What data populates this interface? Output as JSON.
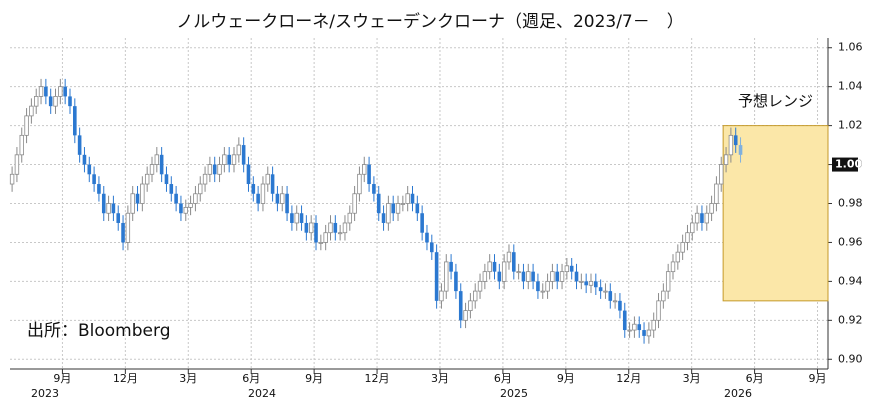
{
  "chart_data": {
    "type": "candlestick",
    "title": "ノルウェークローネ/スウェーデンクローナ（週足、2023/7－　）",
    "source": "出所：Bloomberg",
    "up_color": "#ffffff",
    "up_stroke": "#8a8a8a",
    "down_color": "#2b78d0",
    "latest_color": "#7fb0de",
    "grid": true,
    "xlim": [
      5.5,
      44.5
    ],
    "xticks": [
      {
        "value": 8,
        "label": "9月"
      },
      {
        "value": 11,
        "label": "12月"
      },
      {
        "value": 14,
        "label": "3月"
      },
      {
        "value": 17,
        "label": "6月"
      },
      {
        "value": 20,
        "label": "9月"
      },
      {
        "value": 23,
        "label": "12月"
      },
      {
        "value": 26,
        "label": "3月"
      },
      {
        "value": 29,
        "label": "6月"
      },
      {
        "value": 32,
        "label": "9月"
      },
      {
        "value": 35,
        "label": "12月"
      },
      {
        "value": 38,
        "label": "3月"
      },
      {
        "value": 41,
        "label": "6月"
      },
      {
        "value": 44,
        "label": "9月"
      }
    ],
    "year_labels": [
      "2023",
      "2024",
      "2025",
      "2026"
    ],
    "ylim": [
      0.895,
      1.065
    ],
    "yticks": [
      1.06,
      1.04,
      1.02,
      {
        "value": 1.0,
        "label": "1.00"
      },
      0.98,
      0.96,
      0.94,
      0.92,
      {
        "value": 0.9,
        "label": "0.90"
      }
    ],
    "last_price": {
      "value": 1.0,
      "label": "1.00"
    },
    "forecast_range": {
      "label": "予想レンジ",
      "low": 0.93,
      "high": 1.02,
      "x_start": 39.5
    },
    "x": [
      5.6,
      5.83,
      6.06,
      6.29,
      6.52,
      6.75,
      6.98,
      7.21,
      7.44,
      7.67,
      7.9,
      8.13,
      8.36,
      8.59,
      8.82,
      9.05,
      9.28,
      9.51,
      9.74,
      9.97,
      10.2,
      10.43,
      10.66,
      10.89,
      11.12,
      11.35,
      11.58,
      11.81,
      12.04,
      12.27,
      12.5,
      12.73,
      12.96,
      13.19,
      13.42,
      13.65,
      13.88,
      14.11,
      14.34,
      14.57,
      14.8,
      15.03,
      15.26,
      15.49,
      15.72,
      15.95,
      16.18,
      16.41,
      16.64,
      16.87,
      17.1,
      17.33,
      17.56,
      17.79,
      18.02,
      18.25,
      18.48,
      18.71,
      18.94,
      19.17,
      19.4,
      19.63,
      19.86,
      20.09,
      20.32,
      20.55,
      20.78,
      21.01,
      21.24,
      21.47,
      21.7,
      21.93,
      22.16,
      22.39,
      22.62,
      22.85,
      23.08,
      23.31,
      23.54,
      23.77,
      24,
      24.23,
      24.46,
      24.69,
      24.92,
      25.15,
      25.38,
      25.61,
      25.84,
      26.07,
      26.3,
      26.53,
      26.76,
      26.99,
      27.22,
      27.45,
      27.68,
      27.91,
      28.14,
      28.37,
      28.6,
      28.83,
      29.06,
      29.29,
      29.52,
      29.75,
      29.98,
      30.21,
      30.44,
      30.67,
      30.9,
      31.13,
      31.36,
      31.59,
      31.82,
      32.05,
      32.28,
      32.51,
      32.74,
      32.97,
      33.2,
      33.43,
      33.66,
      33.89,
      34.12,
      34.35,
      34.58,
      34.81,
      35.04,
      35.27,
      35.5,
      35.73,
      35.96,
      36.19,
      36.42,
      36.65,
      36.88,
      37.11,
      37.34,
      37.57,
      37.8,
      38.03,
      38.26,
      38.49,
      38.72,
      38.95,
      39.18,
      39.41,
      39.64,
      39.87,
      40.1,
      40.33
    ],
    "open": [
      0.99,
      0.995,
      1.005,
      1.015,
      1.025,
      1.03,
      1.035,
      1.04,
      1.035,
      1.03,
      1.035,
      1.04,
      1.035,
      1.03,
      1.015,
      1.005,
      1.0,
      0.995,
      0.99,
      0.985,
      0.975,
      0.98,
      0.975,
      0.97,
      0.96,
      0.975,
      0.985,
      0.98,
      0.99,
      0.995,
      1.0,
      1.005,
      0.995,
      0.99,
      0.985,
      0.98,
      0.975,
      0.978,
      0.98,
      0.985,
      0.99,
      0.995,
      1.0,
      0.995,
      1.0,
      1.005,
      1.0,
      1.005,
      1.01,
      1.0,
      0.99,
      0.985,
      0.98,
      0.99,
      0.995,
      0.985,
      0.98,
      0.985,
      0.975,
      0.97,
      0.975,
      0.97,
      0.965,
      0.97,
      0.96,
      0.96,
      0.965,
      0.97,
      0.965,
      0.965,
      0.97,
      0.975,
      0.985,
      0.995,
      1.0,
      0.99,
      0.985,
      0.975,
      0.97,
      0.98,
      0.975,
      0.98,
      0.98,
      0.985,
      0.98,
      0.975,
      0.965,
      0.96,
      0.955,
      0.93,
      0.935,
      0.95,
      0.945,
      0.935,
      0.92,
      0.925,
      0.93,
      0.935,
      0.94,
      0.945,
      0.95,
      0.945,
      0.94,
      0.95,
      0.955,
      0.945,
      0.945,
      0.94,
      0.945,
      0.94,
      0.935,
      0.935,
      0.94,
      0.945,
      0.94,
      0.945,
      0.948,
      0.945,
      0.94,
      0.94,
      0.938,
      0.94,
      0.937,
      0.935,
      0.935,
      0.93,
      0.93,
      0.925,
      0.915,
      0.915,
      0.918,
      0.915,
      0.912,
      0.915,
      0.92,
      0.93,
      0.935,
      0.945,
      0.95,
      0.955,
      0.96,
      0.965,
      0.97,
      0.975,
      0.97,
      0.975,
      0.98,
      0.99,
      1.0,
      1.005,
      1.015,
      1.01
    ],
    "high": [
      0.999,
      1.009,
      1.019,
      1.029,
      1.034,
      1.039,
      1.044,
      1.044,
      1.039,
      1.039,
      1.044,
      1.044,
      1.039,
      1.034,
      1.019,
      1.009,
      1.004,
      0.999,
      0.994,
      0.989,
      0.984,
      0.984,
      0.979,
      0.974,
      0.979,
      0.989,
      0.989,
      0.994,
      0.999,
      1.004,
      1.009,
      1.009,
      0.999,
      0.994,
      0.989,
      0.984,
      0.982,
      0.984,
      0.989,
      0.994,
      0.999,
      1.004,
      1.004,
      1.004,
      1.009,
      1.009,
      1.009,
      1.014,
      1.014,
      1.004,
      0.994,
      0.989,
      0.994,
      0.999,
      0.999,
      0.989,
      0.989,
      0.989,
      0.979,
      0.979,
      0.979,
      0.974,
      0.974,
      0.974,
      0.964,
      0.969,
      0.974,
      0.974,
      0.969,
      0.974,
      0.979,
      0.989,
      0.999,
      1.004,
      1.004,
      0.994,
      0.989,
      0.979,
      0.984,
      0.984,
      0.984,
      0.984,
      0.989,
      0.989,
      0.984,
      0.979,
      0.969,
      0.964,
      0.959,
      0.939,
      0.954,
      0.954,
      0.949,
      0.939,
      0.929,
      0.934,
      0.939,
      0.944,
      0.949,
      0.954,
      0.954,
      0.949,
      0.954,
      0.959,
      0.959,
      0.949,
      0.949,
      0.949,
      0.949,
      0.944,
      0.939,
      0.944,
      0.949,
      0.949,
      0.949,
      0.952,
      0.952,
      0.949,
      0.944,
      0.944,
      0.944,
      0.944,
      0.941,
      0.939,
      0.939,
      0.934,
      0.934,
      0.929,
      0.919,
      0.922,
      0.922,
      0.919,
      0.919,
      0.924,
      0.934,
      0.939,
      0.949,
      0.954,
      0.959,
      0.964,
      0.969,
      0.974,
      0.979,
      0.979,
      0.979,
      0.984,
      0.994,
      1.004,
      1.009,
      1.019,
      1.019,
      1.014
    ],
    "low": [
      0.986,
      0.991,
      1.001,
      1.011,
      1.021,
      1.026,
      1.031,
      1.031,
      1.026,
      1.026,
      1.031,
      1.031,
      1.026,
      1.011,
      1.001,
      0.996,
      0.991,
      0.986,
      0.981,
      0.971,
      0.971,
      0.971,
      0.966,
      0.956,
      0.956,
      0.971,
      0.976,
      0.976,
      0.986,
      0.991,
      0.996,
      0.991,
      0.986,
      0.981,
      0.976,
      0.971,
      0.971,
      0.974,
      0.976,
      0.981,
      0.986,
      0.991,
      0.991,
      0.991,
      0.996,
      0.996,
      0.996,
      1.001,
      0.996,
      0.986,
      0.981,
      0.976,
      0.976,
      0.986,
      0.981,
      0.976,
      0.976,
      0.971,
      0.966,
      0.966,
      0.966,
      0.961,
      0.961,
      0.956,
      0.956,
      0.956,
      0.961,
      0.961,
      0.961,
      0.961,
      0.966,
      0.971,
      0.981,
      0.991,
      0.986,
      0.981,
      0.971,
      0.966,
      0.966,
      0.971,
      0.971,
      0.976,
      0.976,
      0.976,
      0.971,
      0.961,
      0.956,
      0.951,
      0.926,
      0.926,
      0.931,
      0.941,
      0.931,
      0.916,
      0.916,
      0.921,
      0.926,
      0.931,
      0.936,
      0.941,
      0.941,
      0.936,
      0.936,
      0.946,
      0.941,
      0.941,
      0.936,
      0.936,
      0.936,
      0.931,
      0.931,
      0.931,
      0.936,
      0.936,
      0.936,
      0.941,
      0.941,
      0.936,
      0.936,
      0.934,
      0.934,
      0.933,
      0.931,
      0.931,
      0.926,
      0.926,
      0.921,
      0.911,
      0.911,
      0.911,
      0.911,
      0.908,
      0.908,
      0.911,
      0.916,
      0.926,
      0.931,
      0.941,
      0.946,
      0.951,
      0.956,
      0.961,
      0.966,
      0.966,
      0.966,
      0.971,
      0.976,
      0.986,
      0.996,
      1.001,
      1.006,
      1.001
    ],
    "close": [
      0.995,
      1.005,
      1.015,
      1.025,
      1.03,
      1.035,
      1.04,
      1.035,
      1.03,
      1.035,
      1.04,
      1.035,
      1.03,
      1.015,
      1.005,
      1.0,
      0.995,
      0.99,
      0.985,
      0.975,
      0.98,
      0.975,
      0.97,
      0.96,
      0.975,
      0.985,
      0.98,
      0.99,
      0.995,
      1.0,
      1.005,
      0.995,
      0.99,
      0.985,
      0.98,
      0.975,
      0.978,
      0.98,
      0.985,
      0.99,
      0.995,
      1.0,
      0.995,
      1.0,
      1.005,
      1.0,
      1.005,
      1.01,
      1.0,
      0.99,
      0.985,
      0.98,
      0.99,
      0.995,
      0.985,
      0.98,
      0.985,
      0.975,
      0.97,
      0.975,
      0.97,
      0.965,
      0.97,
      0.96,
      0.96,
      0.965,
      0.97,
      0.965,
      0.965,
      0.97,
      0.975,
      0.985,
      0.995,
      1.0,
      0.99,
      0.985,
      0.975,
      0.97,
      0.98,
      0.975,
      0.98,
      0.98,
      0.985,
      0.98,
      0.975,
      0.965,
      0.96,
      0.955,
      0.93,
      0.935,
      0.95,
      0.945,
      0.935,
      0.92,
      0.925,
      0.93,
      0.935,
      0.94,
      0.945,
      0.95,
      0.945,
      0.94,
      0.95,
      0.955,
      0.945,
      0.945,
      0.94,
      0.945,
      0.94,
      0.935,
      0.935,
      0.94,
      0.945,
      0.94,
      0.945,
      0.948,
      0.945,
      0.94,
      0.94,
      0.938,
      0.94,
      0.937,
      0.935,
      0.935,
      0.93,
      0.93,
      0.925,
      0.915,
      0.915,
      0.918,
      0.915,
      0.912,
      0.915,
      0.92,
      0.93,
      0.935,
      0.945,
      0.95,
      0.955,
      0.96,
      0.965,
      0.97,
      0.975,
      0.97,
      0.975,
      0.98,
      0.99,
      1.0,
      1.005,
      1.015,
      1.01,
      1.005
    ]
  }
}
